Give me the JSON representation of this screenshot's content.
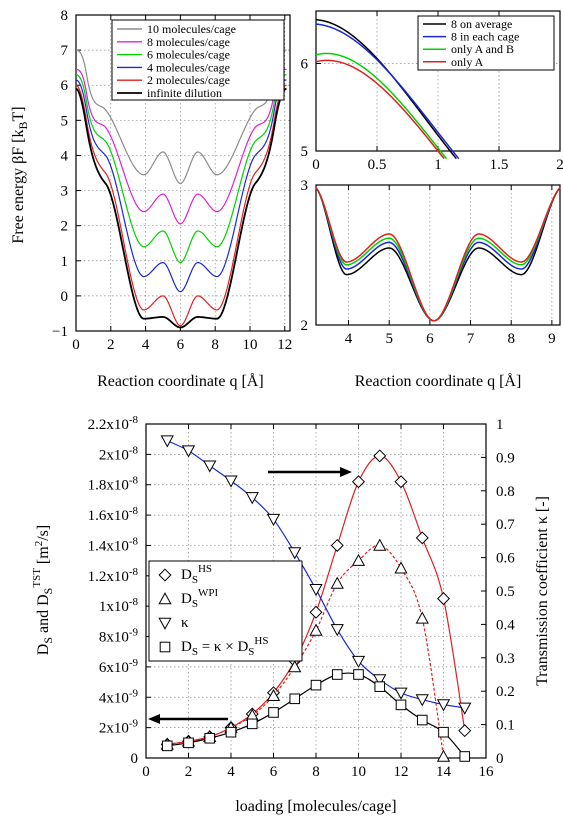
{
  "chart_data": [
    {
      "id": "A",
      "type": "line",
      "xlabel": "Reaction coordinate q [Å]",
      "ylabel": "Free energy βF [kBT]",
      "xlim": [
        0,
        12.3
      ],
      "ylim": [
        -1,
        8
      ],
      "xticks": [
        "0",
        "2",
        "4",
        "6",
        "8",
        "10",
        "12"
      ],
      "yticks": [
        "−1",
        "0",
        "1",
        "2",
        "3",
        "4",
        "5",
        "6",
        "7",
        "8"
      ],
      "grid": true,
      "legend_position": "top-right",
      "series": [
        {
          "name": "10 molecules/cage",
          "color": "#8c8c8c",
          "edge": 7.0,
          "plateau": 5.3,
          "wells": [
            3.45,
            3.2,
            3.45
          ],
          "hump": 4.1
        },
        {
          "name": "8 molecules/cage",
          "color": "#e020d8",
          "edge": 6.45,
          "plateau": 4.8,
          "wells": [
            2.4,
            2.05,
            2.4
          ],
          "hump": 2.9
        },
        {
          "name": "6 molecules/cage",
          "color": "#00d200",
          "edge": 6.3,
          "plateau": 4.4,
          "wells": [
            1.4,
            0.95,
            1.4
          ],
          "hump": 1.85
        },
        {
          "name": "4 molecules/cage",
          "color": "#1a28d6",
          "edge": 6.15,
          "plateau": 4.0,
          "wells": [
            0.55,
            0.12,
            0.55
          ],
          "hump": 0.95
        },
        {
          "name": "2 molecules/cage",
          "color": "#e02020",
          "edge": 6.0,
          "plateau": 3.5,
          "wells": [
            -0.4,
            -0.85,
            -0.4
          ],
          "hump": 0.0
        },
        {
          "name": "infinite dilution",
          "color": "#000000",
          "edge": 5.9,
          "plateau": 3.2,
          "wells": [
            -0.65,
            -0.9,
            -0.65
          ],
          "hump": -0.6
        }
      ]
    },
    {
      "id": "B",
      "type": "line",
      "xlim": [
        0,
        2
      ],
      "ylim": [
        5,
        6.6
      ],
      "xticks": [
        "0",
        "0.5",
        "1",
        "1.5",
        "2"
      ],
      "yticks": [
        "5",
        "6"
      ],
      "grid": true,
      "legend_position": "top-right",
      "series": [
        {
          "name": "8 on average",
          "color": "#000000",
          "y0": 6.5,
          "slope0": -0.08,
          "x_at_5": 1.1
        },
        {
          "name": "8 in each cage",
          "color": "#1a28d6",
          "y0": 6.45,
          "slope0": -0.1,
          "x_at_5": 1.12
        },
        {
          "name": "only A and B",
          "color": "#00d200",
          "y0": 6.1,
          "slope0": 0.35,
          "x_at_5": 1.02
        },
        {
          "name": "only A",
          "color": "#e02020",
          "y0": 6.02,
          "slope0": 0.35,
          "x_at_5": 1.0
        }
      ]
    },
    {
      "id": "C",
      "type": "line",
      "xlabel": "Reaction coordinate q [Å]",
      "xlim": [
        3.2,
        9.2
      ],
      "ylim": [
        2,
        3
      ],
      "xticks": [
        "4",
        "5",
        "6",
        "7",
        "8",
        "9"
      ],
      "yticks": [
        "2",
        "3"
      ],
      "grid": true,
      "series": [
        {
          "color": "#000000",
          "wells": 2.36,
          "peak": 2.55
        },
        {
          "color": "#1a28d6",
          "wells": 2.4,
          "peak": 2.59
        },
        {
          "color": "#00d200",
          "wells": 2.43,
          "peak": 2.62
        },
        {
          "color": "#e02020",
          "wells": 2.45,
          "peak": 2.65
        }
      ]
    },
    {
      "id": "D",
      "type": "line",
      "xlabel": "loading [molecules/cage]",
      "ylabel": "DS and DSTST [m2/s]",
      "ylabel_right": "Transmission coefficient κ [-]",
      "xlim": [
        0,
        16
      ],
      "ylim": [
        0,
        2.2e-08
      ],
      "ylim_right": [
        0,
        1
      ],
      "xticks": [
        "0",
        "2",
        "4",
        "6",
        "8",
        "10",
        "12",
        "14",
        "16"
      ],
      "yticks": [
        "0",
        "2x10-9",
        "4x10-9",
        "6x10-9",
        "8x10-9",
        "1x10-8",
        "1.2x10-8",
        "1.4x10-8",
        "1.6x10-8",
        "1.8x10-8",
        "2x10-8",
        "2.2x10-8"
      ],
      "yticks_right": [
        "0",
        "0.1",
        "0.2",
        "0.3",
        "0.4",
        "0.5",
        "0.6",
        "0.7",
        "0.8",
        "0.9",
        "1"
      ],
      "grid": true,
      "legend_position": "center-left",
      "legend": [
        {
          "main": "D",
          "sub": "S",
          "sup": "HS",
          "marker": "diamond"
        },
        {
          "main": "D",
          "sub": "S",
          "sup": "WPI",
          "marker": "triangle-up"
        },
        {
          "main": "κ",
          "marker": "triangle-down"
        },
        {
          "main": "D",
          "sub": "S",
          "tail": " = κ × D",
          "sub2": "S",
          "sup2": "HS",
          "marker": "square"
        }
      ],
      "series": [
        {
          "name": "DS HS",
          "axis": "left",
          "marker": "diamond",
          "color": "#e02020",
          "dash": false,
          "x": [
            1,
            2,
            3,
            4,
            5,
            6,
            7,
            8,
            9,
            10,
            11,
            12,
            13,
            14,
            15
          ],
          "y": [
            9e-10,
            1.1e-09,
            1.4e-09,
            2e-09,
            2.9e-09,
            4.3e-09,
            6.4e-09,
            9.6e-09,
            1.4e-08,
            1.82e-08,
            1.99e-08,
            1.82e-08,
            1.45e-08,
            1.05e-08,
            1.8e-09
          ]
        },
        {
          "name": "DS WPI",
          "axis": "left",
          "marker": "triangle-up",
          "color": "#e02020",
          "dash": true,
          "x": [
            1,
            2,
            3,
            4,
            5,
            6,
            7,
            8,
            9,
            10,
            11,
            12,
            13,
            14
          ],
          "y": [
            9e-10,
            1.1e-09,
            1.4e-09,
            2e-09,
            2.8e-09,
            4.1e-09,
            6e-09,
            8.4e-09,
            1.15e-08,
            1.3e-08,
            1.4e-08,
            1.25e-08,
            9.2e-09,
            1e-10
          ]
        },
        {
          "name": "kappa",
          "axis": "right",
          "marker": "triangle-down",
          "color": "#1a28d6",
          "dash": false,
          "x": [
            1,
            2,
            3,
            4,
            5,
            6,
            7,
            8,
            9,
            10,
            11,
            12,
            13,
            14,
            15
          ],
          "y": [
            0.95,
            0.92,
            0.875,
            0.83,
            0.78,
            0.715,
            0.615,
            0.505,
            0.385,
            0.29,
            0.235,
            0.195,
            0.175,
            0.16,
            0.15
          ]
        },
        {
          "name": "DS = kappa x DS HS",
          "axis": "left",
          "marker": "square",
          "color": "#000000",
          "dash": false,
          "x": [
            1,
            2,
            3,
            4,
            5,
            6,
            7,
            8,
            9,
            10,
            11,
            12,
            13,
            14,
            15
          ],
          "y": [
            8e-10,
            1e-09,
            1.3e-09,
            1.7e-09,
            2.25e-09,
            3e-09,
            3.9e-09,
            4.8e-09,
            5.5e-09,
            5.5e-09,
            4.7e-09,
            3.5e-09,
            2.5e-09,
            1.7e-09,
            1e-10
          ]
        }
      ]
    }
  ]
}
